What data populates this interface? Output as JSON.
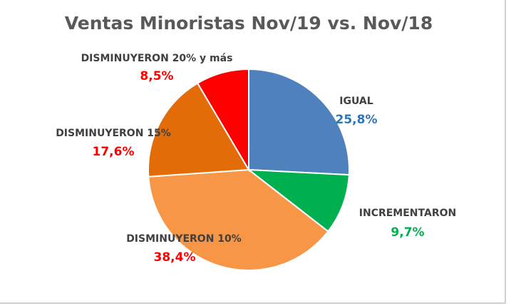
{
  "chart_data": {
    "type": "pie",
    "title": "Ventas Minoristas Nov/19 vs. Nov/18",
    "start_angle": "top, clockwise",
    "slices": [
      {
        "label": "IGUAL",
        "value": 25.8,
        "value_label": "25,8%",
        "color": "#4F81BD",
        "label_color": "#2E75B6"
      },
      {
        "label": "INCREMENTARON",
        "value": 9.7,
        "value_label": "9,7%",
        "color": "#00B050",
        "label_color": "#00B050"
      },
      {
        "label": "DISMINUYERON 10%",
        "value": 38.4,
        "value_label": "38,4%",
        "color": "#F79646",
        "label_color": "#FF0000"
      },
      {
        "label": "DISMINUYERON 15%",
        "value": 17.6,
        "value_label": "17,6%",
        "color": "#E36C09",
        "label_color": "#FF0000"
      },
      {
        "label": "DISMINUYERON 20% y más",
        "value": 8.5,
        "value_label": "8,5%",
        "color": "#FF0000",
        "label_color": "#FF0000"
      }
    ]
  }
}
